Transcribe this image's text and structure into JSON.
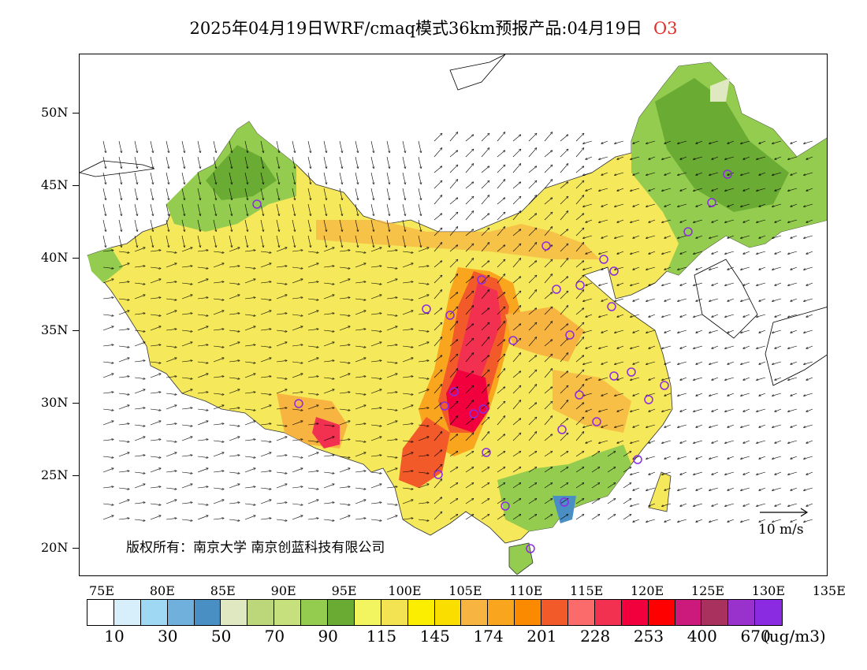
{
  "title": {
    "main": "2025年04月19日WRF/cmaq模式36km预报产品:04月19日",
    "pollutant": "O3"
  },
  "axes": {
    "lat_labels": [
      "50N",
      "45N",
      "40N",
      "35N",
      "30N",
      "25N",
      "20N"
    ],
    "lon_labels": [
      "75E",
      "80E",
      "85E",
      "90E",
      "95E",
      "100E",
      "105E",
      "110E",
      "115E",
      "120E",
      "125E",
      "130E",
      "135E"
    ]
  },
  "map": {
    "copyright": "版权所有：南京大学  南京创蓝科技有限公司",
    "vector_reference": "10 m/s",
    "regions": [
      {
        "name": "northwest-basin",
        "level": "115"
      },
      {
        "name": "northeast",
        "level": "70-90"
      },
      {
        "name": "sichuan-chongqing",
        "level": "228-253"
      },
      {
        "name": "south-coast",
        "level": "70-90"
      }
    ]
  },
  "colorbar": {
    "colors": [
      "#ffffff",
      "#d6effa",
      "#9ed8f2",
      "#6fb0dc",
      "#4a8fc4",
      "#dfe8c0",
      "#bcd77a",
      "#c6e07e",
      "#93cc4e",
      "#6aab34",
      "#f2f560",
      "#f3e352",
      "#fbee00",
      "#f9de00",
      "#f7b440",
      "#f9a51e",
      "#fb8a00",
      "#f25a2a",
      "#fb6b6b",
      "#f23050",
      "#f2003e",
      "#fe0000",
      "#cc1a7c",
      "#a8325d",
      "#9932cc",
      "#8a2be2"
    ],
    "labels": [
      "10",
      "30",
      "50",
      "70",
      "90",
      "115",
      "145",
      "174",
      "201",
      "228",
      "253",
      "400",
      "670"
    ],
    "unit": "(ug/m3)"
  }
}
